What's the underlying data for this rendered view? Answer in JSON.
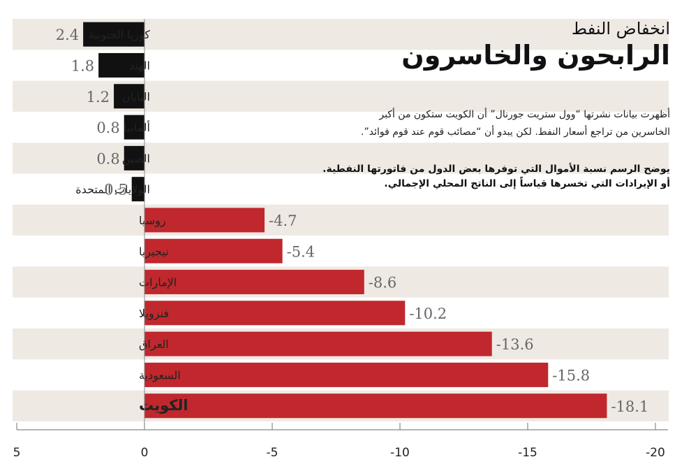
{
  "header": {
    "kicker": "انخفاض النفط",
    "title": "الرابحون والخاسرون"
  },
  "intro": {
    "line1": "أظهرت بيانات نشرتها “وول ستريت جورنال” أن الكويت ستكون من أكبر",
    "line2": "الخاسرين من تراجع أسعار النفط. لكن يبدو أن “مصائب قوم عند قوم فوائد”."
  },
  "note": {
    "line1": "يوضح الرسم نسبة الأموال التي توفرها بعض الدول من فاتورتها النفطية.",
    "line2": "أو الإيرادات التي تخسرها قياساً إلى الناتج المحلي الإجمالي."
  },
  "colors": {
    "gain": "#111111",
    "loss": "#c0282d",
    "stripe": "#efe9e4",
    "axis": "#888888"
  },
  "chart_data": {
    "type": "bar",
    "orientation": "horizontal",
    "categories": [
      "كوريا الجنوبية",
      "الهند",
      "اليابان",
      "ألمانيا",
      "الصين",
      "الولايات المتحدة",
      "روسيا",
      "نيجيريا",
      "الإمارات",
      "فنزويلا",
      "العراق",
      "السعودية",
      "الكويت"
    ],
    "values": [
      2.4,
      1.8,
      1.2,
      0.8,
      0.8,
      0.5,
      -4.7,
      -5.4,
      -8.6,
      -10.2,
      -13.6,
      -15.8,
      -18.1
    ],
    "value_labels": [
      "2.4",
      "1.8",
      "1.2",
      "0.8",
      "0.8",
      "0.5",
      "-4.7",
      "-5.4",
      "-8.6",
      "-10.2",
      "-13.6",
      "-15.8",
      "-18.1"
    ],
    "highlight": "الكويت",
    "axis_range": [
      5,
      -20
    ],
    "axis_reversed": true,
    "ticks": [
      5,
      0,
      -5,
      -10,
      -15,
      -20
    ],
    "tick_labels": [
      "5",
      "0",
      "-5",
      "-10",
      "-15",
      "-20"
    ],
    "grid": false,
    "legend": "none"
  }
}
